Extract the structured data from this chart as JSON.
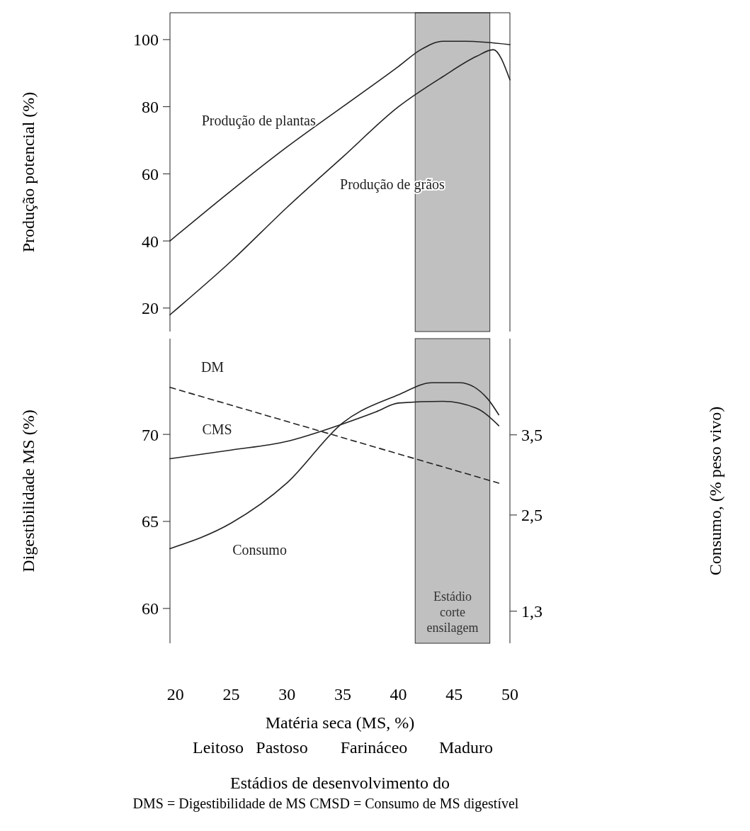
{
  "chart_data": [
    {
      "type": "line",
      "ylabel": "Produção potencial (%)",
      "xlim": [
        19.5,
        50
      ],
      "ylim": [
        13,
        108
      ],
      "yticks": [
        20,
        40,
        60,
        80,
        100
      ],
      "tick_labels": "y",
      "grid": false,
      "marker": "none",
      "series": [
        {
          "name": "Produção de plantas",
          "color": "#222222",
          "x": [
            19.5,
            25,
            30,
            35,
            40,
            42,
            44,
            46,
            50
          ],
          "values": [
            40,
            55,
            68,
            80,
            92,
            97,
            99.5,
            99.5,
            98.5
          ]
        },
        {
          "name": "Produção de grãos",
          "color": "#222222",
          "x": [
            19.5,
            25,
            30,
            35,
            40,
            44,
            47,
            48.5,
            50
          ],
          "values": [
            18,
            34,
            50,
            65,
            80,
            89,
            95,
            97,
            88
          ]
        }
      ],
      "bands": [
        {
          "axis": "x",
          "from": 41.5,
          "to": 48.2,
          "color": "#8c8c8c"
        }
      ]
    },
    {
      "type": "line",
      "xlabel": "Matéria seca (MS, %)",
      "ylabel": "Digestibilidade  MS (%)",
      "y2label": "Consumo, (% peso vivo)",
      "xlim": [
        19.5,
        50
      ],
      "xticks": [
        20,
        25,
        30,
        35,
        40,
        45,
        50
      ],
      "ylim": [
        58,
        75.5
      ],
      "yticks": [
        60,
        65,
        70
      ],
      "y2lim": [
        0.9,
        4.7
      ],
      "y2ticks": [
        {
          "value": 1.3,
          "label": "1,3"
        },
        {
          "value": 2.5,
          "label": "2,5"
        },
        {
          "value": 3.5,
          "label": "3,5"
        }
      ],
      "grid": false,
      "marker": "none",
      "series": [
        {
          "name": "DM",
          "color": "#222222",
          "line_style": "dashed",
          "x": [
            19.5,
            49
          ],
          "values": [
            72.7,
            67.2
          ]
        },
        {
          "name": "CMS",
          "color": "#222222",
          "line_style": "solid",
          "x": [
            19.5,
            25,
            30,
            35,
            38,
            40,
            44,
            47,
            49
          ],
          "values": [
            68.6,
            69.1,
            69.6,
            70.6,
            71.3,
            71.8,
            71.9,
            71.5,
            70.5
          ]
        },
        {
          "name": "Consumo",
          "color": "#222222",
          "line_style": "solid",
          "axis": "y2",
          "x": [
            19.5,
            25,
            30,
            35,
            40,
            43,
            45.5,
            48,
            49
          ],
          "values": [
            2.08,
            2.4,
            2.9,
            3.65,
            4.0,
            4.15,
            4.15,
            3.95,
            3.75
          ]
        }
      ],
      "bands": [
        {
          "axis": "x",
          "from": 41.5,
          "to": 48.2,
          "label": "Estádio corte ensilagem",
          "color": "#8c8c8c"
        }
      ],
      "annotations": [
        "Leitoso",
        "Pastoso",
        "Farináceo",
        "Maduro",
        "Estádios de desenvolvimento do",
        "DMS = Digestibilidade  de MS  CMSD = Consumo de MS  digestível"
      ]
    }
  ]
}
